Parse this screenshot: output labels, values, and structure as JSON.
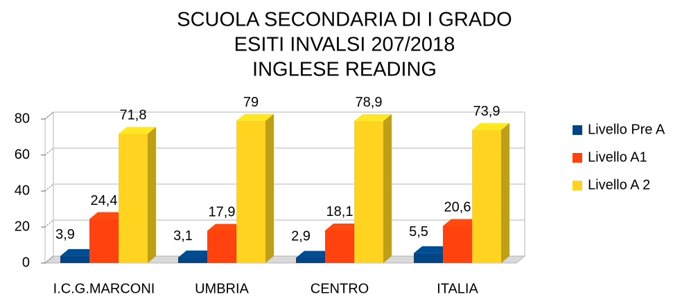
{
  "chart_data": {
    "type": "bar3d",
    "title": [
      "SCUOLA SECONDARIA DI I GRADO",
      "ESITI INVALSI 207/2018",
      "INGLESE READING"
    ],
    "categories": [
      "I.C.G.MARCONI",
      "UMBRIA",
      "CENTRO",
      "ITALIA"
    ],
    "series": [
      {
        "name": "Livello Pre A",
        "color": "#004586",
        "values": [
          3.9,
          3.1,
          2.9,
          5.5
        ],
        "value_labels": [
          "3,9",
          "3,1",
          "2,9",
          "5,5"
        ]
      },
      {
        "name": "Livello A1",
        "color": "#ff420e",
        "values": [
          24.4,
          17.9,
          18.1,
          20.6
        ],
        "value_labels": [
          "24,4",
          "17,9",
          "18,1",
          "20,6"
        ]
      },
      {
        "name": "Livello A 2",
        "color": "#ffd320",
        "values": [
          71.8,
          79,
          78.9,
          73.9
        ],
        "value_labels": [
          "71,8",
          "79",
          "78,9",
          "73,9"
        ]
      }
    ],
    "ylim": [
      0,
      80
    ],
    "yticks": [
      0,
      20,
      40,
      60,
      80
    ],
    "grid": true,
    "legend": "right"
  }
}
